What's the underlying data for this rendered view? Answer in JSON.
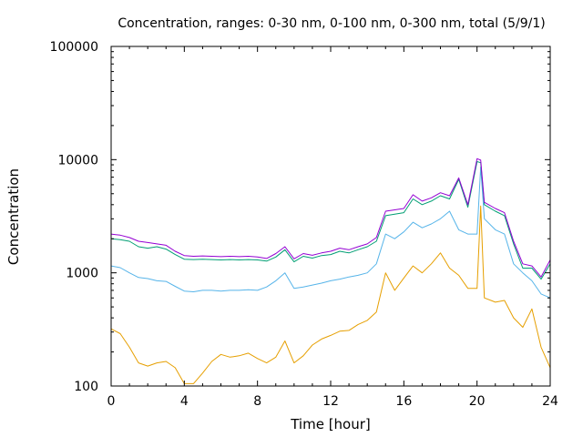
{
  "chart_data": {
    "type": "line",
    "title": "Concentration, ranges: 0-30 nm, 0-100 nm, 0-300 nm, total (5/9/1)",
    "xlabel": "Time [hour]",
    "ylabel": "Concentration",
    "xlim": [
      0,
      24
    ],
    "ylim": [
      100,
      100000
    ],
    "yscale": "log",
    "grid": false,
    "legend": "none",
    "x_ticks": [
      0,
      4,
      8,
      12,
      16,
      20,
      24
    ],
    "x_tick_labels": [
      "0",
      "4",
      "8",
      "12",
      "16",
      "20",
      "24"
    ],
    "y_ticks": [
      100,
      1000,
      10000,
      100000
    ],
    "y_tick_labels": [
      "100",
      "1000",
      "10000",
      "100000"
    ],
    "series": [
      {
        "color": "#E69F00",
        "points": [
          [
            0.0,
            320
          ],
          [
            0.5,
            290
          ],
          [
            1.0,
            220
          ],
          [
            1.5,
            160
          ],
          [
            2.0,
            150
          ],
          [
            2.5,
            160
          ],
          [
            3.0,
            165
          ],
          [
            3.5,
            145
          ],
          [
            4.0,
            105
          ],
          [
            4.5,
            105
          ],
          [
            5.0,
            130
          ],
          [
            5.5,
            165
          ],
          [
            6.0,
            190
          ],
          [
            6.5,
            180
          ],
          [
            7.0,
            185
          ],
          [
            7.5,
            195
          ],
          [
            8.0,
            175
          ],
          [
            8.5,
            160
          ],
          [
            9.0,
            180
          ],
          [
            9.5,
            250
          ],
          [
            10.0,
            160
          ],
          [
            10.5,
            185
          ],
          [
            11.0,
            230
          ],
          [
            11.5,
            260
          ],
          [
            12.0,
            280
          ],
          [
            12.5,
            305
          ],
          [
            13.0,
            310
          ],
          [
            13.5,
            350
          ],
          [
            14.0,
            380
          ],
          [
            14.5,
            450
          ],
          [
            15.0,
            1000
          ],
          [
            15.5,
            700
          ],
          [
            16.0,
            900
          ],
          [
            16.5,
            1150
          ],
          [
            17.0,
            1000
          ],
          [
            17.5,
            1200
          ],
          [
            18.0,
            1500
          ],
          [
            18.5,
            1100
          ],
          [
            19.0,
            950
          ],
          [
            19.5,
            730
          ],
          [
            20.0,
            730
          ],
          [
            20.2,
            3900
          ],
          [
            20.4,
            600
          ],
          [
            21.0,
            550
          ],
          [
            21.5,
            570
          ],
          [
            22.0,
            400
          ],
          [
            22.5,
            330
          ],
          [
            23.0,
            480
          ],
          [
            23.5,
            220
          ],
          [
            24.0,
            145
          ]
        ]
      },
      {
        "color": "#56B4E9",
        "points": [
          [
            0.0,
            1150
          ],
          [
            0.5,
            1110
          ],
          [
            1.0,
            1000
          ],
          [
            1.5,
            910
          ],
          [
            2.0,
            890
          ],
          [
            2.5,
            850
          ],
          [
            3.0,
            840
          ],
          [
            3.5,
            760
          ],
          [
            4.0,
            690
          ],
          [
            4.5,
            680
          ],
          [
            5.0,
            700
          ],
          [
            5.5,
            700
          ],
          [
            6.0,
            690
          ],
          [
            6.5,
            700
          ],
          [
            7.0,
            700
          ],
          [
            7.5,
            710
          ],
          [
            8.0,
            700
          ],
          [
            8.5,
            750
          ],
          [
            9.0,
            850
          ],
          [
            9.5,
            1000
          ],
          [
            10.0,
            730
          ],
          [
            10.5,
            750
          ],
          [
            11.0,
            780
          ],
          [
            11.5,
            810
          ],
          [
            12.0,
            850
          ],
          [
            12.5,
            880
          ],
          [
            13.0,
            920
          ],
          [
            13.5,
            950
          ],
          [
            14.0,
            1000
          ],
          [
            14.5,
            1200
          ],
          [
            15.0,
            2200
          ],
          [
            15.5,
            2000
          ],
          [
            16.0,
            2300
          ],
          [
            16.5,
            2800
          ],
          [
            17.0,
            2500
          ],
          [
            17.5,
            2700
          ],
          [
            18.0,
            3000
          ],
          [
            18.5,
            3500
          ],
          [
            19.0,
            2400
          ],
          [
            19.5,
            2200
          ],
          [
            20.0,
            2200
          ],
          [
            20.2,
            8600
          ],
          [
            20.4,
            3000
          ],
          [
            21.0,
            2400
          ],
          [
            21.5,
            2200
          ],
          [
            22.0,
            1200
          ],
          [
            22.5,
            1000
          ],
          [
            23.0,
            850
          ],
          [
            23.5,
            650
          ],
          [
            24.0,
            600
          ]
        ]
      },
      {
        "color": "#009E73",
        "points": [
          [
            0.0,
            2000
          ],
          [
            0.5,
            1960
          ],
          [
            1.0,
            1900
          ],
          [
            1.5,
            1700
          ],
          [
            2.0,
            1650
          ],
          [
            2.5,
            1700
          ],
          [
            3.0,
            1620
          ],
          [
            3.5,
            1450
          ],
          [
            4.0,
            1320
          ],
          [
            4.5,
            1310
          ],
          [
            5.0,
            1320
          ],
          [
            5.5,
            1310
          ],
          [
            6.0,
            1300
          ],
          [
            6.5,
            1310
          ],
          [
            7.0,
            1300
          ],
          [
            7.5,
            1310
          ],
          [
            8.0,
            1300
          ],
          [
            8.5,
            1270
          ],
          [
            9.0,
            1380
          ],
          [
            9.5,
            1600
          ],
          [
            10.0,
            1250
          ],
          [
            10.5,
            1400
          ],
          [
            11.0,
            1350
          ],
          [
            11.5,
            1420
          ],
          [
            12.0,
            1450
          ],
          [
            12.5,
            1550
          ],
          [
            13.0,
            1500
          ],
          [
            13.5,
            1600
          ],
          [
            14.0,
            1700
          ],
          [
            14.5,
            1900
          ],
          [
            15.0,
            3200
          ],
          [
            15.5,
            3300
          ],
          [
            16.0,
            3400
          ],
          [
            16.5,
            4500
          ],
          [
            17.0,
            4000
          ],
          [
            17.5,
            4300
          ],
          [
            18.0,
            4800
          ],
          [
            18.5,
            4500
          ],
          [
            19.0,
            6700
          ],
          [
            19.5,
            3800
          ],
          [
            20.0,
            9600
          ],
          [
            20.2,
            9400
          ],
          [
            20.4,
            4000
          ],
          [
            21.0,
            3500
          ],
          [
            21.5,
            3200
          ],
          [
            22.0,
            1800
          ],
          [
            22.5,
            1100
          ],
          [
            23.0,
            1100
          ],
          [
            23.5,
            880
          ],
          [
            24.0,
            1200
          ]
        ]
      },
      {
        "color": "#9400D3",
        "points": [
          [
            0.0,
            2200
          ],
          [
            0.5,
            2150
          ],
          [
            1.0,
            2050
          ],
          [
            1.5,
            1900
          ],
          [
            2.0,
            1850
          ],
          [
            2.5,
            1800
          ],
          [
            3.0,
            1750
          ],
          [
            3.5,
            1550
          ],
          [
            4.0,
            1420
          ],
          [
            4.5,
            1400
          ],
          [
            5.0,
            1410
          ],
          [
            5.5,
            1400
          ],
          [
            6.0,
            1390
          ],
          [
            6.5,
            1400
          ],
          [
            7.0,
            1390
          ],
          [
            7.5,
            1400
          ],
          [
            8.0,
            1380
          ],
          [
            8.5,
            1340
          ],
          [
            9.0,
            1480
          ],
          [
            9.5,
            1700
          ],
          [
            10.0,
            1330
          ],
          [
            10.5,
            1480
          ],
          [
            11.0,
            1430
          ],
          [
            11.5,
            1500
          ],
          [
            12.0,
            1550
          ],
          [
            12.5,
            1650
          ],
          [
            13.0,
            1600
          ],
          [
            13.5,
            1700
          ],
          [
            14.0,
            1800
          ],
          [
            14.5,
            2050
          ],
          [
            15.0,
            3500
          ],
          [
            15.5,
            3600
          ],
          [
            16.0,
            3700
          ],
          [
            16.5,
            4900
          ],
          [
            17.0,
            4300
          ],
          [
            17.5,
            4600
          ],
          [
            18.0,
            5100
          ],
          [
            18.5,
            4800
          ],
          [
            19.0,
            6900
          ],
          [
            19.5,
            4000
          ],
          [
            20.0,
            10200
          ],
          [
            20.2,
            9900
          ],
          [
            20.4,
            4200
          ],
          [
            21.0,
            3700
          ],
          [
            21.5,
            3400
          ],
          [
            22.0,
            1900
          ],
          [
            22.5,
            1200
          ],
          [
            23.0,
            1150
          ],
          [
            23.5,
            920
          ],
          [
            24.0,
            1300
          ]
        ]
      }
    ]
  }
}
